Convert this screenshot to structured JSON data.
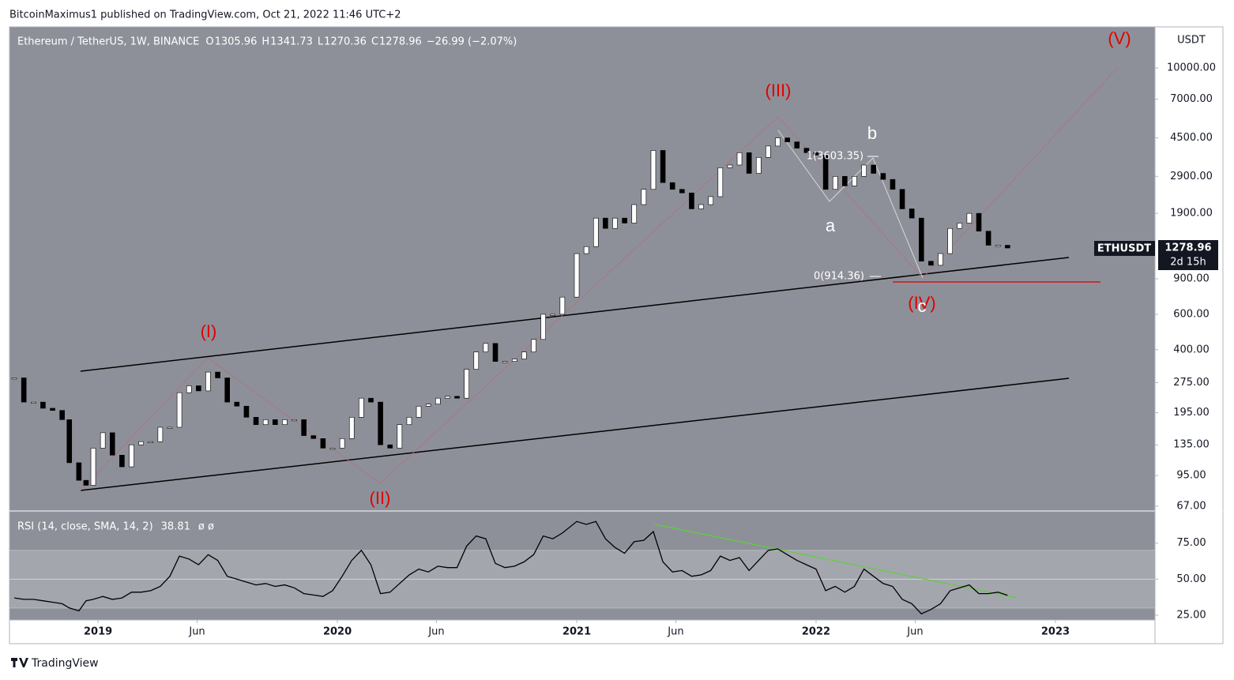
{
  "header": {
    "published": "BitcoinMaximus1 published on TradingView.com, Oct 21, 2022 11:46 UTC+2",
    "brand": "TradingView"
  },
  "chart_data": [
    {
      "type": "candlestick",
      "title": "Ethereum / TetherUS, 1W, BINANCE",
      "ohlc": [
        {
          "label": "O",
          "value": 1305.96
        },
        {
          "label": "H",
          "value": 1341.73
        },
        {
          "label": "L",
          "value": 1270.36
        },
        {
          "label": "C",
          "value": 1278.96
        }
      ],
      "change": "−26.99 (−2.07%)",
      "currency": "USDT",
      "symbol": "ETHUSDT",
      "countdown": "2d 15h",
      "log_scale": true,
      "colors": {
        "up": "#ffffff",
        "down": "#000000"
      },
      "x": [
        2018.65,
        2018.69,
        2018.73,
        2018.77,
        2018.81,
        2018.85,
        2018.88,
        2018.92,
        2018.95,
        2018.98,
        2019.02,
        2019.06,
        2019.1,
        2019.14,
        2019.18,
        2019.22,
        2019.26,
        2019.3,
        2019.34,
        2019.38,
        2019.42,
        2019.46,
        2019.5,
        2019.54,
        2019.58,
        2019.62,
        2019.66,
        2019.7,
        2019.74,
        2019.78,
        2019.82,
        2019.86,
        2019.9,
        2019.94,
        2019.98,
        2020.02,
        2020.06,
        2020.1,
        2020.14,
        2020.18,
        2020.22,
        2020.26,
        2020.3,
        2020.34,
        2020.38,
        2020.42,
        2020.46,
        2020.5,
        2020.54,
        2020.58,
        2020.62,
        2020.66,
        2020.7,
        2020.74,
        2020.78,
        2020.82,
        2020.86,
        2020.9,
        2020.94,
        2021.0,
        2021.04,
        2021.08,
        2021.12,
        2021.16,
        2021.2,
        2021.24,
        2021.28,
        2021.32,
        2021.36,
        2021.4,
        2021.44,
        2021.48,
        2021.52,
        2021.56,
        2021.6,
        2021.64,
        2021.68,
        2021.72,
        2021.76,
        2021.8,
        2021.84,
        2021.88,
        2021.92,
        2021.96,
        2022.0,
        2022.04,
        2022.08,
        2022.12,
        2022.16,
        2022.2,
        2022.24,
        2022.28,
        2022.32,
        2022.36,
        2022.4,
        2022.44,
        2022.48,
        2022.52,
        2022.56,
        2022.6,
        2022.64,
        2022.68,
        2022.72,
        2022.76,
        2022.8
      ],
      "values": [
        290,
        220,
        220,
        205,
        200,
        180,
        110,
        90,
        85,
        130,
        155,
        120,
        105,
        135,
        140,
        140,
        165,
        165,
        245,
        265,
        250,
        310,
        290,
        220,
        210,
        185,
        170,
        180,
        170,
        180,
        180,
        150,
        145,
        130,
        130,
        145,
        185,
        230,
        220,
        135,
        130,
        170,
        185,
        210,
        215,
        230,
        235,
        230,
        320,
        390,
        430,
        350,
        350,
        360,
        390,
        450,
        600,
        600,
        730,
        1200,
        1300,
        1800,
        1600,
        1800,
        1700,
        2100,
        2500,
        3900,
        2700,
        2500,
        2400,
        2000,
        2100,
        2300,
        3200,
        3300,
        3800,
        3000,
        3600,
        4100,
        4500,
        4300,
        4000,
        3800,
        3700,
        2500,
        2900,
        2600,
        2900,
        3300,
        3000,
        2800,
        2500,
        2000,
        1800,
        1100,
        1050,
        1200,
        1600,
        1700,
        1900,
        1550,
        1320,
        1320,
        1278.96
      ],
      "xlim": [
        2018.63,
        2023.416
      ],
      "xticks": [
        {
          "value": 2019,
          "label": "2019"
        },
        {
          "value": 2019.414,
          "label": "Jun"
        },
        {
          "value": 2020,
          "label": "2020"
        },
        {
          "value": 2020.414,
          "label": "Jun"
        },
        {
          "value": 2021,
          "label": "2021"
        },
        {
          "value": 2021.414,
          "label": "Jun"
        },
        {
          "value": 2022,
          "label": "2022"
        },
        {
          "value": 2022.414,
          "label": "Jun"
        },
        {
          "value": 2023,
          "label": "2023"
        }
      ],
      "ylim": [
        63.4,
        16000
      ],
      "yticks": [
        {
          "value": 67,
          "label": "67.00"
        },
        {
          "value": 95,
          "label": "95.00"
        },
        {
          "value": 135,
          "label": "135.00"
        },
        {
          "value": 195,
          "label": "195.00"
        },
        {
          "value": 275,
          "label": "275.00"
        },
        {
          "value": 400,
          "label": "400.00"
        },
        {
          "value": 600,
          "label": "600.00"
        },
        {
          "value": 900,
          "label": "900.00"
        },
        {
          "value": 1900,
          "label": "1900.00"
        },
        {
          "value": 2900,
          "label": "2900.00"
        },
        {
          "value": 4500,
          "label": "4500.00"
        },
        {
          "value": 7000,
          "label": "7000.00"
        },
        {
          "value": 10000,
          "label": "10000.00"
        }
      ],
      "annotations": [
        "(I)",
        "(II)",
        "(III)",
        "(IV)",
        "(V)",
        "a",
        "b",
        "c",
        "1(3603.35)",
        "0(914.36)"
      ]
    },
    {
      "type": "line",
      "title": "RSI (14, close, SMA, 14, 2)",
      "status": "ø   ø",
      "color": "#000000",
      "band": [
        30,
        70
      ],
      "x": [
        2018.65,
        2018.69,
        2018.73,
        2018.77,
        2018.81,
        2018.85,
        2018.88,
        2018.92,
        2018.95,
        2018.98,
        2019.02,
        2019.06,
        2019.1,
        2019.14,
        2019.18,
        2019.22,
        2019.26,
        2019.3,
        2019.34,
        2019.38,
        2019.42,
        2019.46,
        2019.5,
        2019.54,
        2019.58,
        2019.62,
        2019.66,
        2019.7,
        2019.74,
        2019.78,
        2019.82,
        2019.86,
        2019.9,
        2019.94,
        2019.98,
        2020.02,
        2020.06,
        2020.1,
        2020.14,
        2020.18,
        2020.22,
        2020.26,
        2020.3,
        2020.34,
        2020.38,
        2020.42,
        2020.46,
        2020.5,
        2020.54,
        2020.58,
        2020.62,
        2020.66,
        2020.7,
        2020.74,
        2020.78,
        2020.82,
        2020.86,
        2020.9,
        2020.94,
        2021.0,
        2021.04,
        2021.08,
        2021.12,
        2021.16,
        2021.2,
        2021.24,
        2021.28,
        2021.32,
        2021.36,
        2021.4,
        2021.44,
        2021.48,
        2021.52,
        2021.56,
        2021.6,
        2021.64,
        2021.68,
        2021.72,
        2021.76,
        2021.8,
        2021.84,
        2021.88,
        2021.92,
        2021.96,
        2022.0,
        2022.04,
        2022.08,
        2022.12,
        2022.16,
        2022.2,
        2022.24,
        2022.28,
        2022.32,
        2022.36,
        2022.4,
        2022.44,
        2022.48,
        2022.52,
        2022.56,
        2022.6,
        2022.64,
        2022.68,
        2022.72,
        2022.76,
        2022.8
      ],
      "values": [
        37,
        36,
        36,
        35,
        34,
        33,
        30,
        28,
        35,
        36,
        38,
        36,
        37,
        41,
        41,
        42,
        45,
        52,
        66,
        64,
        60,
        67,
        63,
        52,
        50,
        48,
        46,
        47,
        45,
        46,
        44,
        40,
        39,
        38,
        42,
        52,
        63,
        70,
        60,
        40,
        41,
        47,
        53,
        57,
        55,
        59,
        58,
        58,
        73,
        80,
        78,
        61,
        58,
        59,
        62,
        67,
        80,
        78,
        82,
        90,
        88,
        90,
        78,
        72,
        68,
        76,
        77,
        83,
        62,
        55,
        56,
        52,
        53,
        56,
        66,
        63,
        65,
        56,
        63,
        70,
        71,
        67,
        63,
        60,
        57,
        42,
        45,
        41,
        45,
        57,
        52,
        47,
        45,
        36,
        33,
        26,
        29,
        33,
        42,
        44,
        46,
        40,
        40,
        41,
        38.81
      ],
      "xlim": [
        2018.63,
        2023.416
      ],
      "ylim": [
        21.7,
        97.3
      ],
      "yticks": [
        {
          "value": 25,
          "label": "25.00"
        },
        {
          "value": 50,
          "label": "50.00"
        },
        {
          "value": 75,
          "label": "75.00"
        }
      ]
    }
  ]
}
